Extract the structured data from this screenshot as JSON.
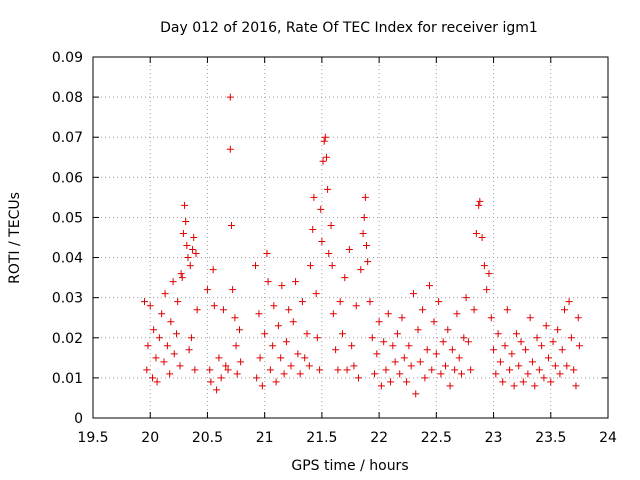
{
  "chart_data": {
    "type": "scatter",
    "title": "Day 012 of 2016, Rate Of TEC Index for receiver igm1",
    "xlabel": "GPS time / hours",
    "ylabel": "ROTI / TECUs",
    "xlim": [
      19.5,
      24
    ],
    "ylim": [
      0,
      0.09
    ],
    "xticks": [
      "19.5",
      "20",
      "20.5",
      "21",
      "21.5",
      "22",
      "22.5",
      "23",
      "23.5",
      "24"
    ],
    "yticks": [
      "0",
      "0.01",
      "0.02",
      "0.03",
      "0.04",
      "0.05",
      "0.06",
      "0.07",
      "0.08",
      "0.09"
    ],
    "grid": true,
    "marker": "+",
    "color": "#e00000",
    "series": [
      {
        "name": "igm1",
        "points": [
          [
            19.95,
            0.029
          ],
          [
            19.97,
            0.012
          ],
          [
            19.98,
            0.018
          ],
          [
            20.0,
            0.028
          ],
          [
            20.02,
            0.01
          ],
          [
            20.03,
            0.022
          ],
          [
            20.05,
            0.015
          ],
          [
            20.06,
            0.009
          ],
          [
            20.08,
            0.02
          ],
          [
            20.1,
            0.026
          ],
          [
            20.12,
            0.014
          ],
          [
            20.13,
            0.031
          ],
          [
            20.15,
            0.018
          ],
          [
            20.17,
            0.011
          ],
          [
            20.18,
            0.024
          ],
          [
            20.2,
            0.034
          ],
          [
            20.21,
            0.016
          ],
          [
            20.23,
            0.021
          ],
          [
            20.24,
            0.029
          ],
          [
            20.26,
            0.013
          ],
          [
            20.27,
            0.036
          ],
          [
            20.28,
            0.035
          ],
          [
            20.29,
            0.046
          ],
          [
            20.3,
            0.053
          ],
          [
            20.31,
            0.049
          ],
          [
            20.32,
            0.043
          ],
          [
            20.33,
            0.04
          ],
          [
            20.35,
            0.038
          ],
          [
            20.37,
            0.042
          ],
          [
            20.38,
            0.045
          ],
          [
            20.4,
            0.041
          ],
          [
            20.36,
            0.02
          ],
          [
            20.39,
            0.012
          ],
          [
            20.41,
            0.027
          ],
          [
            20.34,
            0.017
          ],
          [
            20.5,
            0.032
          ],
          [
            20.52,
            0.012
          ],
          [
            20.53,
            0.009
          ],
          [
            20.55,
            0.037
          ],
          [
            20.56,
            0.028
          ],
          [
            20.58,
            0.007
          ],
          [
            20.6,
            0.015
          ],
          [
            20.62,
            0.01
          ],
          [
            20.64,
            0.027
          ],
          [
            20.66,
            0.013
          ],
          [
            20.68,
            0.012
          ],
          [
            20.7,
            0.08
          ],
          [
            20.7,
            0.067
          ],
          [
            20.71,
            0.048
          ],
          [
            20.72,
            0.032
          ],
          [
            20.74,
            0.025
          ],
          [
            20.75,
            0.018
          ],
          [
            20.76,
            0.011
          ],
          [
            20.78,
            0.022
          ],
          [
            20.79,
            0.014
          ],
          [
            20.92,
            0.038
          ],
          [
            20.93,
            0.01
          ],
          [
            20.95,
            0.026
          ],
          [
            20.96,
            0.015
          ],
          [
            20.98,
            0.008
          ],
          [
            21.0,
            0.021
          ],
          [
            21.02,
            0.041
          ],
          [
            21.03,
            0.034
          ],
          [
            21.05,
            0.012
          ],
          [
            21.07,
            0.018
          ],
          [
            21.08,
            0.028
          ],
          [
            21.1,
            0.009
          ],
          [
            21.12,
            0.023
          ],
          [
            21.14,
            0.015
          ],
          [
            21.15,
            0.033
          ],
          [
            21.17,
            0.011
          ],
          [
            21.19,
            0.019
          ],
          [
            21.21,
            0.027
          ],
          [
            21.23,
            0.013
          ],
          [
            21.25,
            0.024
          ],
          [
            21.27,
            0.034
          ],
          [
            21.29,
            0.016
          ],
          [
            21.31,
            0.011
          ],
          [
            21.33,
            0.029
          ],
          [
            21.35,
            0.015
          ],
          [
            21.37,
            0.021
          ],
          [
            21.39,
            0.013
          ],
          [
            21.4,
            0.038
          ],
          [
            21.42,
            0.047
          ],
          [
            21.43,
            0.055
          ],
          [
            21.45,
            0.031
          ],
          [
            21.46,
            0.02
          ],
          [
            21.48,
            0.012
          ],
          [
            21.49,
            0.052
          ],
          [
            21.5,
            0.044
          ],
          [
            21.51,
            0.064
          ],
          [
            21.52,
            0.069
          ],
          [
            21.53,
            0.07
          ],
          [
            21.54,
            0.065
          ],
          [
            21.55,
            0.057
          ],
          [
            21.56,
            0.041
          ],
          [
            21.58,
            0.048
          ],
          [
            21.59,
            0.038
          ],
          [
            21.6,
            0.026
          ],
          [
            21.62,
            0.017
          ],
          [
            21.64,
            0.012
          ],
          [
            21.66,
            0.029
          ],
          [
            21.68,
            0.021
          ],
          [
            21.7,
            0.035
          ],
          [
            21.72,
            0.012
          ],
          [
            21.74,
            0.042
          ],
          [
            21.76,
            0.018
          ],
          [
            21.78,
            0.013
          ],
          [
            21.8,
            0.028
          ],
          [
            21.82,
            0.01
          ],
          [
            21.84,
            0.037
          ],
          [
            21.86,
            0.046
          ],
          [
            21.87,
            0.05
          ],
          [
            21.88,
            0.055
          ],
          [
            21.89,
            0.043
          ],
          [
            21.9,
            0.039
          ],
          [
            21.92,
            0.029
          ],
          [
            21.94,
            0.02
          ],
          [
            21.96,
            0.011
          ],
          [
            21.98,
            0.016
          ],
          [
            22.0,
            0.024
          ],
          [
            22.02,
            0.008
          ],
          [
            22.04,
            0.019
          ],
          [
            22.06,
            0.012
          ],
          [
            22.08,
            0.026
          ],
          [
            22.1,
            0.009
          ],
          [
            22.12,
            0.018
          ],
          [
            22.14,
            0.014
          ],
          [
            22.16,
            0.021
          ],
          [
            22.18,
            0.011
          ],
          [
            22.2,
            0.025
          ],
          [
            22.22,
            0.015
          ],
          [
            22.24,
            0.009
          ],
          [
            22.26,
            0.018
          ],
          [
            22.28,
            0.013
          ],
          [
            22.3,
            0.031
          ],
          [
            22.32,
            0.006
          ],
          [
            22.34,
            0.022
          ],
          [
            22.36,
            0.014
          ],
          [
            22.38,
            0.027
          ],
          [
            22.4,
            0.01
          ],
          [
            22.42,
            0.017
          ],
          [
            22.44,
            0.033
          ],
          [
            22.46,
            0.012
          ],
          [
            22.48,
            0.024
          ],
          [
            22.5,
            0.016
          ],
          [
            22.52,
            0.029
          ],
          [
            22.54,
            0.011
          ],
          [
            22.56,
            0.019
          ],
          [
            22.58,
            0.013
          ],
          [
            22.6,
            0.022
          ],
          [
            22.62,
            0.008
          ],
          [
            22.64,
            0.017
          ],
          [
            22.66,
            0.012
          ],
          [
            22.68,
            0.026
          ],
          [
            22.7,
            0.015
          ],
          [
            22.72,
            0.011
          ],
          [
            22.74,
            0.02
          ],
          [
            22.76,
            0.03
          ],
          [
            22.78,
            0.019
          ],
          [
            22.8,
            0.012
          ],
          [
            22.83,
            0.027
          ],
          [
            22.85,
            0.046
          ],
          [
            22.87,
            0.053
          ],
          [
            22.88,
            0.054
          ],
          [
            22.9,
            0.045
          ],
          [
            22.92,
            0.038
          ],
          [
            22.94,
            0.032
          ],
          [
            22.96,
            0.036
          ],
          [
            22.98,
            0.025
          ],
          [
            23.0,
            0.017
          ],
          [
            23.02,
            0.011
          ],
          [
            23.04,
            0.021
          ],
          [
            23.06,
            0.014
          ],
          [
            23.08,
            0.009
          ],
          [
            23.1,
            0.018
          ],
          [
            23.12,
            0.027
          ],
          [
            23.14,
            0.012
          ],
          [
            23.16,
            0.016
          ],
          [
            23.18,
            0.008
          ],
          [
            23.2,
            0.021
          ],
          [
            23.22,
            0.013
          ],
          [
            23.24,
            0.019
          ],
          [
            23.26,
            0.009
          ],
          [
            23.28,
            0.017
          ],
          [
            23.3,
            0.011
          ],
          [
            23.32,
            0.025
          ],
          [
            23.34,
            0.014
          ],
          [
            23.36,
            0.008
          ],
          [
            23.38,
            0.02
          ],
          [
            23.4,
            0.012
          ],
          [
            23.42,
            0.018
          ],
          [
            23.44,
            0.01
          ],
          [
            23.46,
            0.023
          ],
          [
            23.48,
            0.015
          ],
          [
            23.5,
            0.009
          ],
          [
            23.52,
            0.019
          ],
          [
            23.54,
            0.013
          ],
          [
            23.56,
            0.022
          ],
          [
            23.58,
            0.011
          ],
          [
            23.6,
            0.017
          ],
          [
            23.62,
            0.027
          ],
          [
            23.64,
            0.013
          ],
          [
            23.66,
            0.029
          ],
          [
            23.68,
            0.02
          ],
          [
            23.7,
            0.012
          ],
          [
            23.72,
            0.008
          ],
          [
            23.74,
            0.025
          ],
          [
            23.75,
            0.018
          ]
        ]
      }
    ]
  }
}
